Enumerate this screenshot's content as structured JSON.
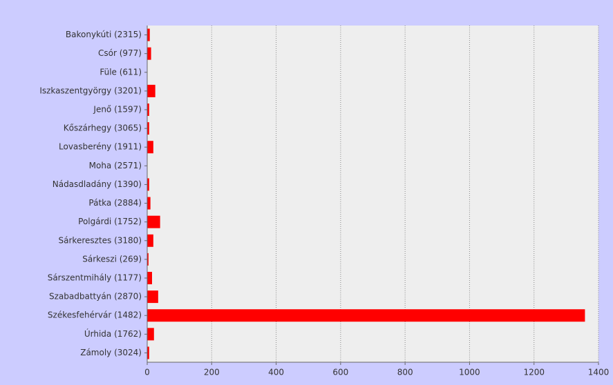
{
  "chart_data": {
    "type": "hbar",
    "categories": [
      "Bakonykúti (2315)",
      "Csór (977)",
      "Füle (611)",
      "Iszkaszentgyörgy (3201)",
      "Jenő (1597)",
      "Kőszárhegy (3065)",
      "Lovasberény (1911)",
      "Moha (2571)",
      "Nádasdladány (1390)",
      "Pátka (2884)",
      "Polgárdi (1752)",
      "Sárkeresztes (3180)",
      "Sárkeszi (269)",
      "Sárszentmihály (1177)",
      "Szabadbattyán (2870)",
      "Székesfehérvár (1482)",
      "Úrhida (1762)",
      "Zámoly (3024)"
    ],
    "values": [
      8,
      12,
      0,
      25,
      6,
      6,
      19,
      0,
      6,
      10,
      40,
      19,
      4,
      15,
      34,
      1358,
      21,
      6
    ],
    "color": "#ff0000",
    "xlim": [
      0,
      1400
    ],
    "xticks": [
      0,
      200,
      400,
      600,
      800,
      1000,
      1200,
      1400
    ],
    "grid": true
  }
}
